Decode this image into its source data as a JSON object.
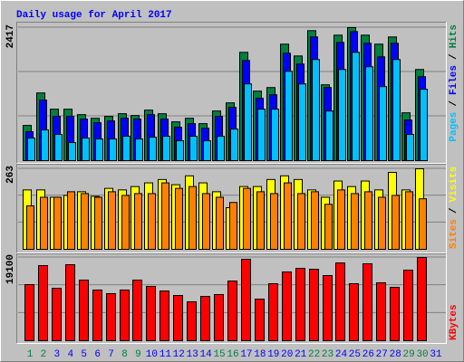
{
  "title": "Daily usage for April 2017",
  "chart_data": [
    {
      "type": "bar",
      "ylim": [
        0,
        2417
      ],
      "yticks": [
        2417
      ],
      "legend_separator": "/",
      "series": [
        {
          "name": "Hits",
          "color": "#008040",
          "values": [
            640,
            1230,
            935,
            935,
            836,
            770,
            804,
            853,
            820,
            918,
            852,
            705,
            770,
            672,
            902,
            1050,
            1968,
            1263,
            1328,
            2116,
            1902,
            2362,
            1378,
            2280,
            2417,
            2280,
            2116,
            2247,
            869,
            1656,
            null
          ]
        },
        {
          "name": "Files",
          "color": "#0000ff",
          "values": [
            525,
            1099,
            804,
            804,
            755,
            689,
            722,
            771,
            755,
            836,
            755,
            607,
            672,
            590,
            804,
            968,
            1820,
            1132,
            1197,
            1951,
            1755,
            2247,
            1328,
            2148,
            2345,
            2132,
            1886,
            2132,
            738,
            1525,
            null
          ]
        },
        {
          "name": "Pages",
          "color": "#00c0ff",
          "values": [
            410,
            558,
            476,
            328,
            410,
            394,
            394,
            443,
            394,
            426,
            443,
            361,
            443,
            361,
            443,
            574,
            1394,
            935,
            935,
            1623,
            1394,
            1837,
            902,
            1656,
            1968,
            1706,
            1345,
            1837,
            476,
            1296,
            null
          ]
        }
      ]
    },
    {
      "type": "bar",
      "ylim": [
        0,
        263
      ],
      "yticks": [
        263
      ],
      "legend_separator": "/",
      "series": [
        {
          "name": "Visits",
          "color": "#ffff00",
          "values": [
            194,
            194,
            170,
            176,
            188,
            173,
            199,
            194,
            205,
            217,
            228,
            211,
            240,
            217,
            188,
            136,
            205,
            205,
            228,
            240,
            228,
            194,
            170,
            223,
            205,
            223,
            194,
            251,
            194,
            263,
            null
          ]
        },
        {
          "name": "Sites",
          "color": "#ff8000",
          "values": [
            142,
            170,
            170,
            188,
            182,
            170,
            188,
            176,
            182,
            182,
            217,
            199,
            205,
            182,
            170,
            153,
            199,
            188,
            182,
            217,
            182,
            188,
            147,
            194,
            182,
            188,
            170,
            176,
            188,
            165,
            null
          ]
        }
      ]
    },
    {
      "type": "bar",
      "ylim": [
        0,
        19100
      ],
      "yticks": [
        19100
      ],
      "legend_separator": "/",
      "categories": [
        "1",
        "2",
        "3",
        "4",
        "5",
        "6",
        "7",
        "8",
        "9",
        "10",
        "11",
        "12",
        "13",
        "14",
        "15",
        "16",
        "17",
        "18",
        "19",
        "20",
        "21",
        "22",
        "23",
        "24",
        "25",
        "26",
        "27",
        "28",
        "29",
        "30",
        "31"
      ],
      "category_colors": [
        "#008040",
        "#008040",
        "#0000ff",
        "#0000ff",
        "#0000ff",
        "#0000ff",
        "#0000ff",
        "#008040",
        "#008040",
        "#0000ff",
        "#0000ff",
        "#0000ff",
        "#0000ff",
        "#0000ff",
        "#008040",
        "#008040",
        "#0000ff",
        "#0000ff",
        "#0000ff",
        "#0000ff",
        "#0000ff",
        "#008040",
        "#008040",
        "#0000ff",
        "#0000ff",
        "#0000ff",
        "#0000ff",
        "#0000ff",
        "#008040",
        "#008040",
        "#0000ff"
      ],
      "series": [
        {
          "name": "KBytes",
          "color": "#ff0000",
          "values": [
            12870,
            17230,
            12040,
            17440,
            13910,
            11630,
            10800,
            11630,
            13910,
            12460,
            11420,
            10380,
            8930,
            10170,
            10590,
            13700,
            18680,
            9550,
            13080,
            15780,
            16610,
            16400,
            14950,
            17850,
            13080,
            17650,
            13290,
            12250,
            16190,
            19100,
            null
          ]
        }
      ]
    }
  ]
}
